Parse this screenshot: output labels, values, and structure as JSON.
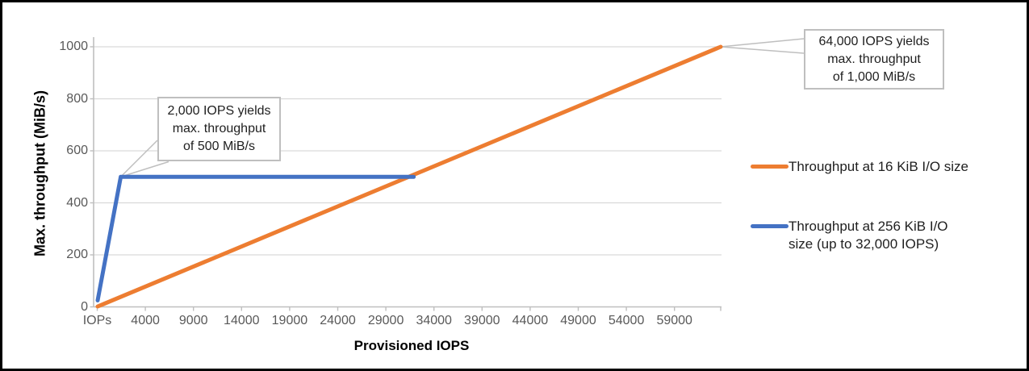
{
  "colors": {
    "series_16kib": "#ED7D31",
    "series_256kib": "#4472C4",
    "gridline": "#D9D9D9",
    "axis": "#BFBFBF",
    "tick_text": "#595959",
    "callout_border": "#BFBFBF",
    "frame_border": "#000000",
    "background": "#FFFFFF"
  },
  "chart_data": {
    "type": "line",
    "title": "",
    "xlabel": "Provisioned IOPS",
    "ylabel": "Max. throughput (MiB/s)",
    "x_tick_labels": [
      "IOPs",
      "4000",
      "9000",
      "14000",
      "19000",
      "24000",
      "29000",
      "34000",
      "39000",
      "44000",
      "49000",
      "54000",
      "59000"
    ],
    "y_tick_labels": [
      "0",
      "200",
      "400",
      "600",
      "800",
      "1000"
    ],
    "ylim": [
      0,
      1100
    ],
    "xlim_iops": [
      100,
      64000
    ],
    "grid": "horizontal",
    "legend_position": "right",
    "series": [
      {
        "name": "Throughput at 16 KiB I/O size",
        "color": "#ED7D31",
        "points": [
          [
            100,
            1.5625
          ],
          [
            64000,
            1000
          ]
        ]
      },
      {
        "name": "Throughput at 256 KiB I/O size (up to 32,000 IOPS)",
        "color": "#4472C4",
        "points": [
          [
            100,
            25
          ],
          [
            2000,
            500
          ],
          [
            32000,
            500
          ]
        ]
      }
    ],
    "annotations": [
      {
        "lines": [
          "2,000 IOPS yields",
          "max. throughput",
          "of 500 MiB/s"
        ],
        "anchor_iops": 2000,
        "anchor_mibs": 500
      },
      {
        "lines": [
          "64,000 IOPS yields",
          "max. throughput",
          "of 1,000 MiB/s"
        ],
        "anchor_iops": 64000,
        "anchor_mibs": 1000
      }
    ]
  },
  "legend": {
    "items": [
      {
        "color": "#ED7D31",
        "lines": [
          "Throughput at 16 KiB I/O size",
          ""
        ]
      },
      {
        "color": "#4472C4",
        "lines": [
          "Throughput at 256 KiB I/O",
          "size (up to 32,000 IOPS)"
        ]
      }
    ]
  }
}
